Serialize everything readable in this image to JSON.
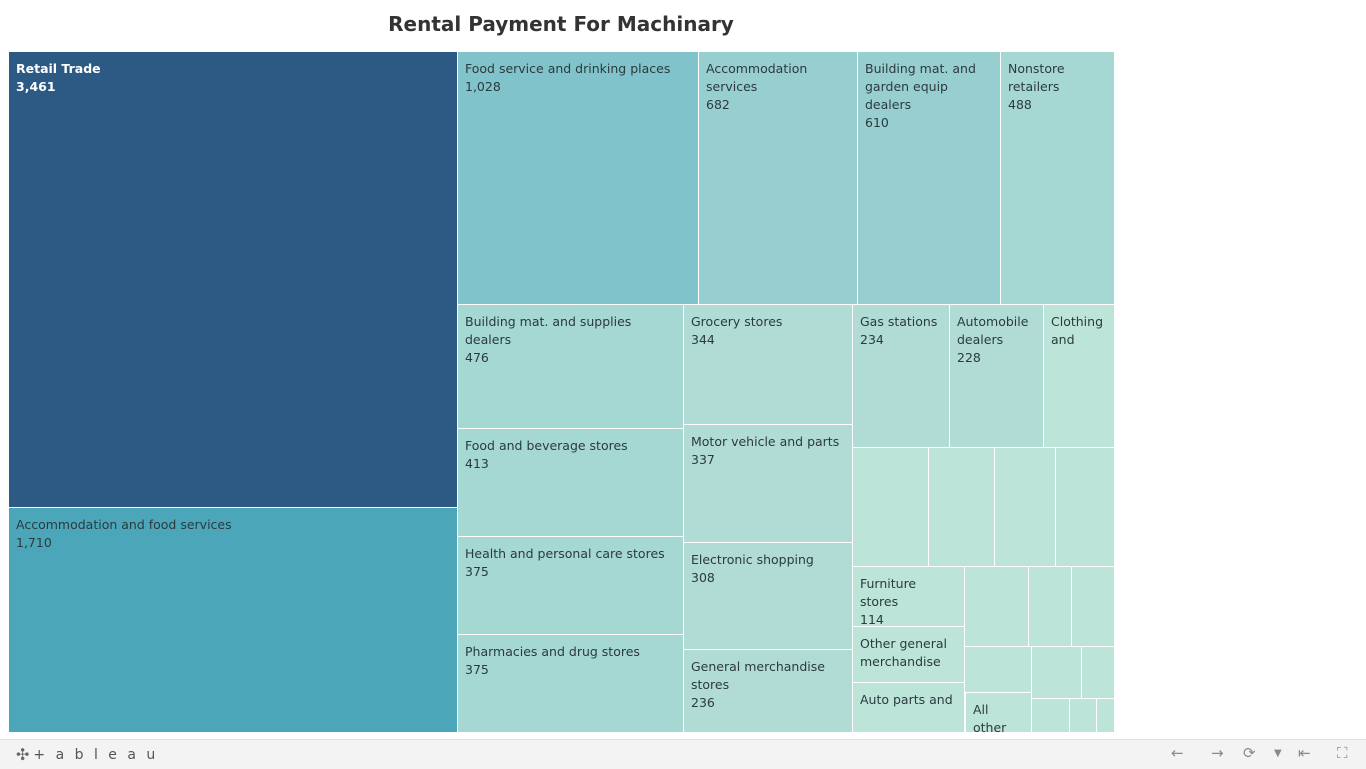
{
  "chart_data": {
    "type": "treemap",
    "title": "Rental Payment For Machinary",
    "groups": [
      {
        "name": "Retail Trade",
        "value": 3461
      },
      {
        "name": "Accommodation and food services",
        "value": 1710
      }
    ],
    "items": [
      {
        "name": "Food service and drinking places",
        "value": 1028
      },
      {
        "name": "Accommodation services",
        "value": 682
      },
      {
        "name": "Building mat. and garden equip dealers",
        "value": 610
      },
      {
        "name": "Nonstore retailers",
        "value": 488
      },
      {
        "name": "Building mat. and supplies dealers",
        "value": 476
      },
      {
        "name": "Food and beverage stores",
        "value": 413
      },
      {
        "name": "Health and personal care stores",
        "value": 375
      },
      {
        "name": "Pharmacies and drug stores",
        "value": 375
      },
      {
        "name": "Grocery stores",
        "value": 344
      },
      {
        "name": "Motor vehicle and parts",
        "value": 337
      },
      {
        "name": "Electronic shopping",
        "value": 308
      },
      {
        "name": "General merchandise stores",
        "value": 236
      },
      {
        "name": "Gas stations",
        "value": 234
      },
      {
        "name": "Automobile dealers",
        "value": 228
      },
      {
        "name": "Clothing and",
        "value": null
      },
      {
        "name": "Furniture stores",
        "value": 114
      },
      {
        "name": "Other general merchandise",
        "value": null
      },
      {
        "name": "Auto parts and",
        "value": null
      },
      {
        "name": "All other",
        "value": null
      }
    ],
    "colors": {
      "retail": "#2d5985",
      "accommodation_food": "#4ca6ba",
      "food_service": "#80c3ca",
      "mid": "#97cfd0",
      "light": "#a5d7d3",
      "lighter": "#b1dcd6",
      "lightest": "#bde4d9"
    }
  },
  "footer": {
    "brand": "+ a b l e a u",
    "brand_icon": "tableau-logo-icon",
    "controls": [
      "undo-icon",
      "redo-icon",
      "revert-icon",
      "dropdown-icon",
      "reset-icon",
      "fullscreen-icon"
    ]
  }
}
